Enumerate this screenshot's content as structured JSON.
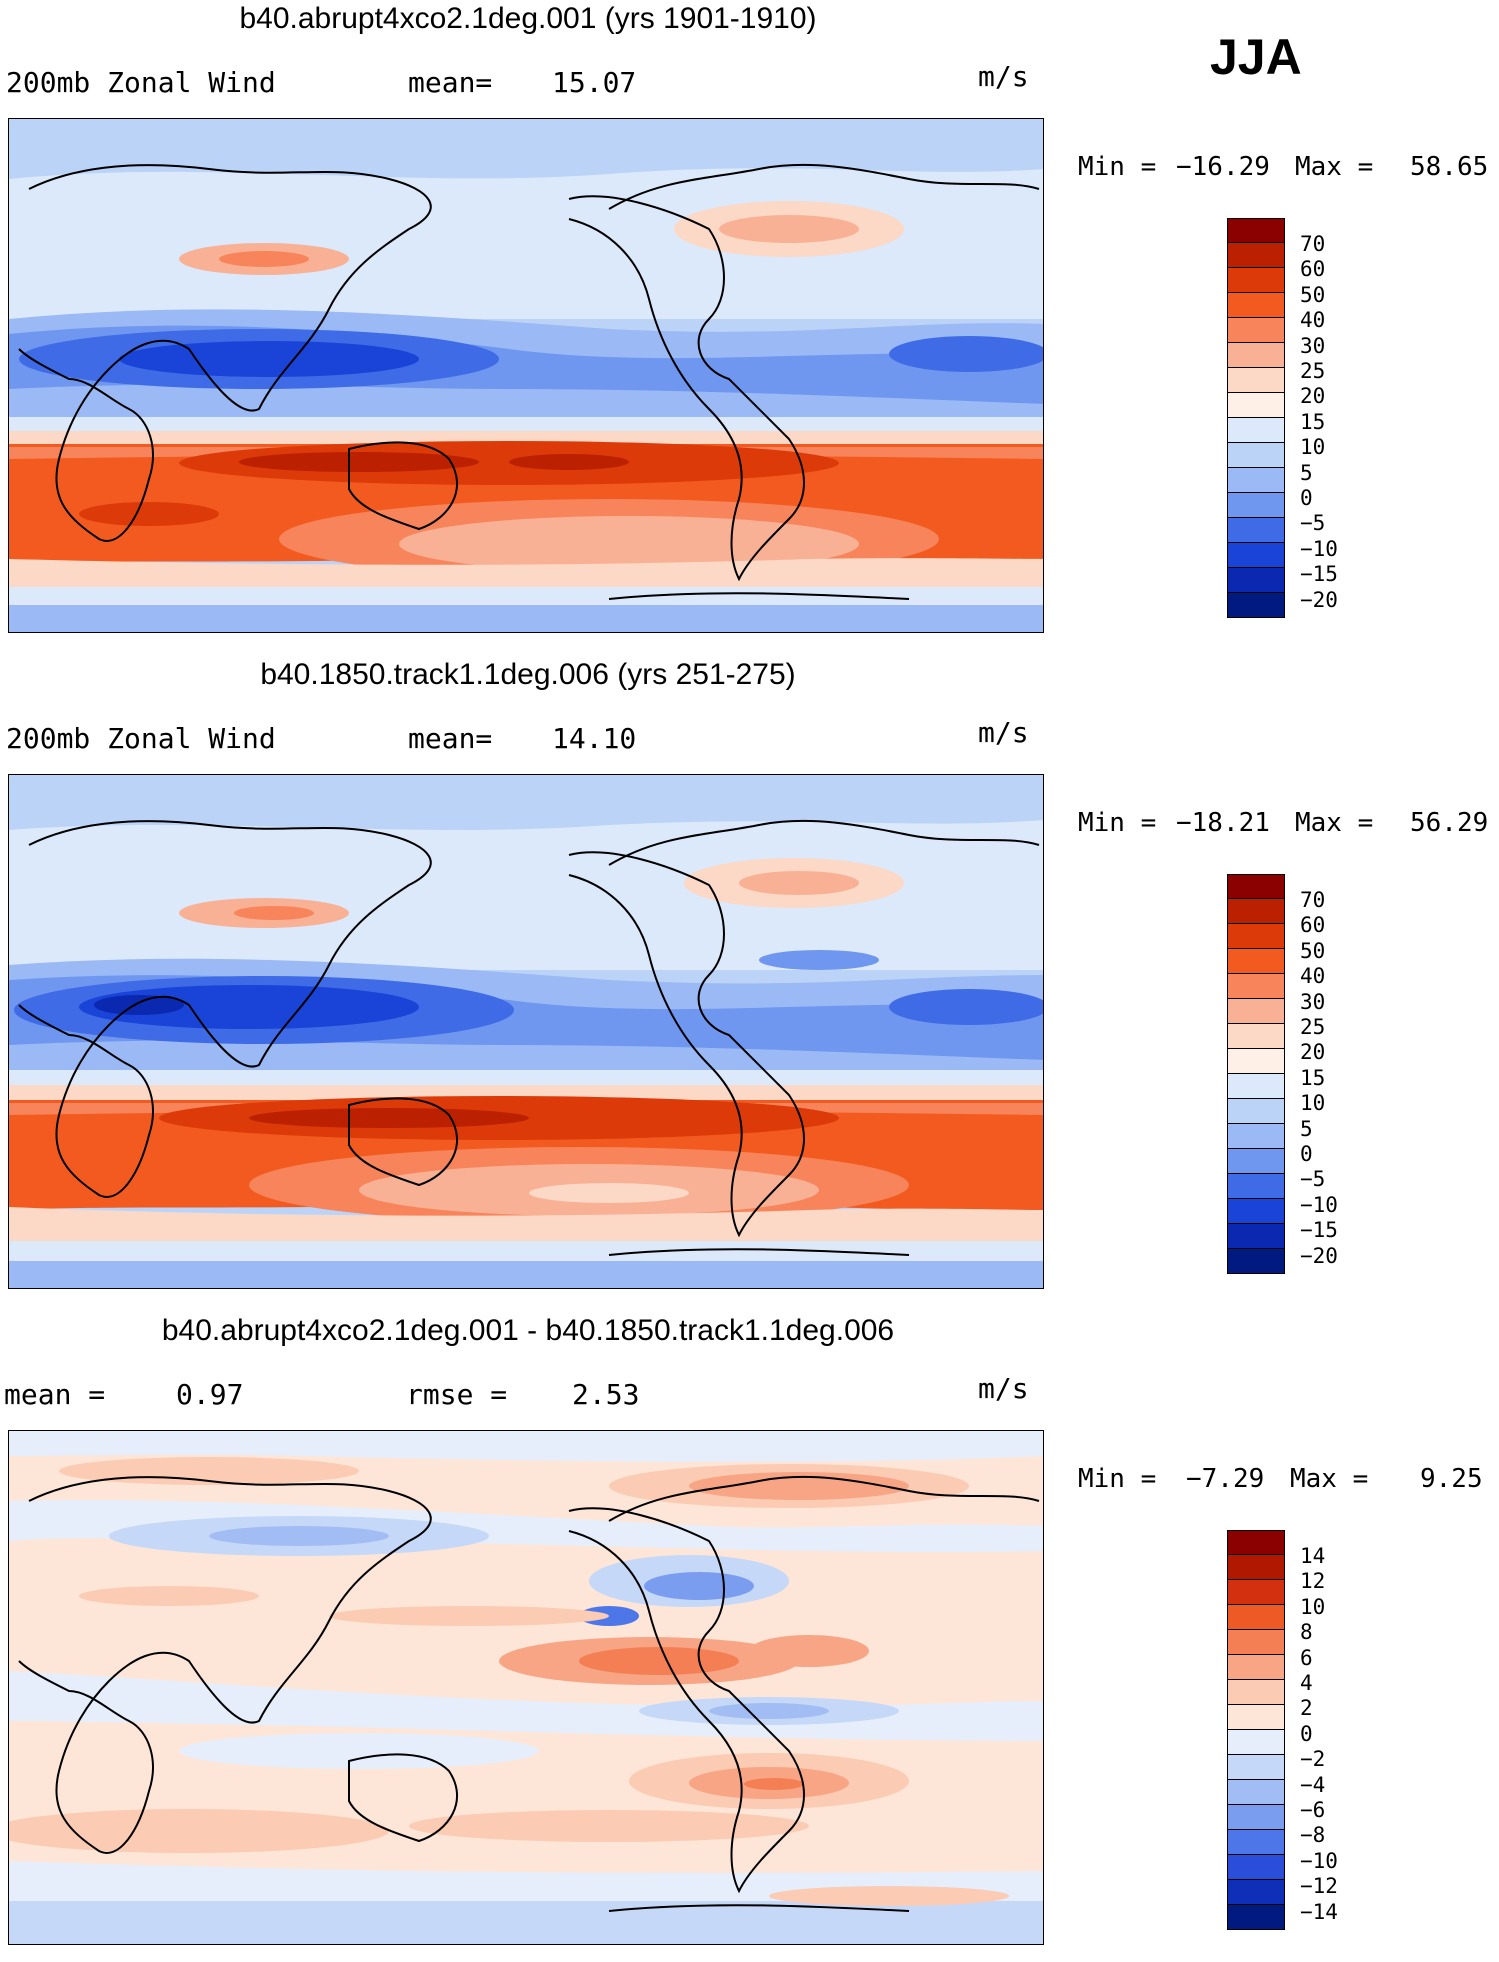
{
  "season": "JJA",
  "units": "m/s",
  "panels": [
    {
      "title": "b40.abrupt4xco2.1deg.001 (yrs 1901-1910)",
      "label_left": "200mb Zonal Wind",
      "stat1_label": "mean=",
      "stat1_value": "15.07",
      "stat2_label": "",
      "stat2_value": "",
      "min_label": "Min =",
      "min_value": "−16.29",
      "max_label": "Max =",
      "max_value": "58.65",
      "map_name": "map-abrupt4xco2"
    },
    {
      "title": "b40.1850.track1.1deg.006 (yrs 251-275)",
      "label_left": "200mb Zonal Wind",
      "stat1_label": "mean=",
      "stat1_value": "14.10",
      "stat2_label": "",
      "stat2_value": "",
      "min_label": "Min =",
      "min_value": "−18.21",
      "max_label": "Max =",
      "max_value": "56.29",
      "map_name": "map-1850-control"
    },
    {
      "title": "b40.abrupt4xco2.1deg.001 - b40.1850.track1.1deg.006",
      "label_left": "mean =",
      "stat1_label": "",
      "stat1_value": "0.97",
      "stat2_label": "rmse =",
      "stat2_value": "2.53",
      "min_label": "Min =",
      "min_value": "−7.29",
      "max_label": "Max =",
      "max_value": "9.25",
      "map_name": "map-difference"
    }
  ],
  "colorbars": {
    "absolute": {
      "labels": [
        "70",
        "60",
        "50",
        "40",
        "30",
        "25",
        "20",
        "15",
        "10",
        "5",
        "0",
        "−5",
        "−10",
        "−15",
        "−20"
      ],
      "colors": [
        "#8b0000",
        "#bb2000",
        "#dd3a0a",
        "#f25a20",
        "#f7845a",
        "#f9b195",
        "#fcd8c6",
        "#fef0e6",
        "#dbe9fb",
        "#bcd3f8",
        "#9ab9f5",
        "#6f97ef",
        "#3f6ce6",
        "#1a44d8",
        "#0b28b0",
        "#001a80"
      ]
    },
    "difference": {
      "labels": [
        "14",
        "12",
        "10",
        "8",
        "6",
        "4",
        "2",
        "0",
        "−2",
        "−4",
        "−6",
        "−8",
        "−10",
        "−12",
        "−14"
      ],
      "colors": [
        "#8b0000",
        "#b01800",
        "#d33010",
        "#ee5a25",
        "#f57f55",
        "#f8a585",
        "#fbcbb4",
        "#fde6d8",
        "#e6eefc",
        "#c6d8f8",
        "#a2bdf4",
        "#7a9def",
        "#4d77e8",
        "#2a4ed9",
        "#0f2fb8",
        "#001a80"
      ]
    }
  }
}
